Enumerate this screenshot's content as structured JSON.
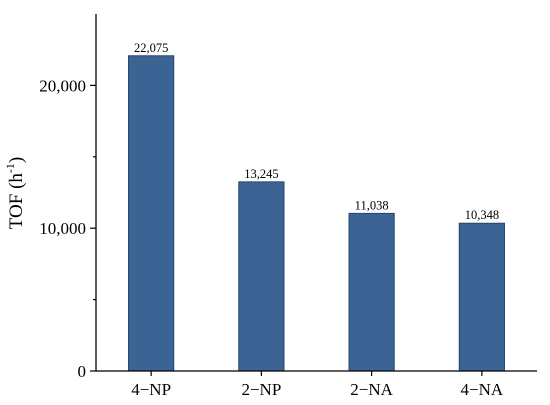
{
  "chart_data": {
    "type": "bar",
    "categories": [
      "4−NP",
      "2−NP",
      "2−NA",
      "4−NA"
    ],
    "values": [
      22075,
      13245,
      11038,
      10348
    ],
    "data_labels": [
      "22,075",
      "13,245",
      "11,038",
      "10,348"
    ],
    "title": "",
    "xlabel": "",
    "ylabel": {
      "base": "TOF (h",
      "superscript": "-1",
      "close": ")"
    },
    "ylim": [
      0,
      25000
    ],
    "yticks": [
      0,
      10000,
      20000
    ],
    "ytick_labels": [
      "0",
      "10,000",
      "20,000"
    ],
    "minor_yticks": [
      5000,
      15000
    ],
    "grid": false,
    "legend": "none",
    "bar_color": "#3B6494",
    "bar_edge_color": "#24466E"
  }
}
